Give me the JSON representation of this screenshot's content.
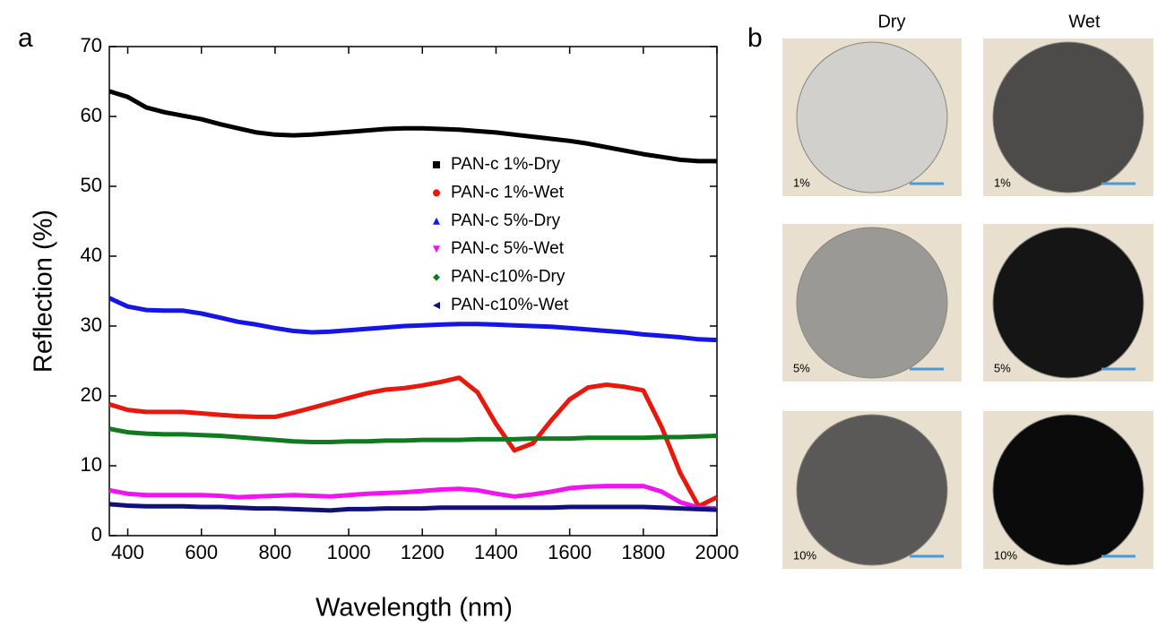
{
  "panel_labels": [
    "a",
    "b"
  ],
  "chart_data": {
    "type": "line",
    "xlabel": "Wavelength (nm)",
    "ylabel": "Reflection (%)",
    "x": [
      350,
      400,
      450,
      500,
      550,
      600,
      650,
      700,
      750,
      800,
      850,
      900,
      950,
      1000,
      1050,
      1100,
      1150,
      1200,
      1250,
      1300,
      1350,
      1400,
      1450,
      1500,
      1550,
      1600,
      1650,
      1700,
      1750,
      1800,
      1850,
      1900,
      1950,
      2000
    ],
    "series": [
      {
        "name": "PAN-c 1%-Dry",
        "color": "#000000",
        "marker": "square",
        "values": [
          63.6,
          62.8,
          61.3,
          60.6,
          60.1,
          59.6,
          58.9,
          58.3,
          57.7,
          57.4,
          57.3,
          57.4,
          57.6,
          57.8,
          58.0,
          58.2,
          58.3,
          58.3,
          58.2,
          58.1,
          57.9,
          57.7,
          57.4,
          57.1,
          56.8,
          56.5,
          56.1,
          55.6,
          55.1,
          54.6,
          54.2,
          53.8,
          53.6,
          53.6
        ]
      },
      {
        "name": "PAN-c 1%-Wet",
        "color": "#e8180c",
        "marker": "circle",
        "values": [
          18.8,
          18.0,
          17.7,
          17.7,
          17.7,
          17.5,
          17.3,
          17.1,
          17.0,
          17.0,
          17.6,
          18.3,
          19.0,
          19.7,
          20.4,
          20.9,
          21.1,
          21.5,
          22.0,
          22.6,
          20.5,
          16.0,
          12.2,
          13.2,
          16.5,
          19.5,
          21.2,
          21.6,
          21.3,
          20.8,
          15.5,
          9.0,
          4.2,
          5.5
        ]
      },
      {
        "name": "PAN-c 5%-Dry",
        "color": "#1515e8",
        "marker": "triangle-up",
        "values": [
          34.0,
          32.8,
          32.3,
          32.2,
          32.2,
          31.8,
          31.2,
          30.6,
          30.2,
          29.7,
          29.3,
          29.1,
          29.2,
          29.4,
          29.6,
          29.8,
          30.0,
          30.1,
          30.2,
          30.3,
          30.3,
          30.2,
          30.1,
          30.0,
          29.9,
          29.7,
          29.5,
          29.3,
          29.1,
          28.8,
          28.6,
          28.4,
          28.1,
          28.0
        ]
      },
      {
        "name": "PAN-c 5%-Wet",
        "color": "#f014f0",
        "marker": "triangle-down",
        "values": [
          6.5,
          6.0,
          5.8,
          5.8,
          5.8,
          5.8,
          5.7,
          5.5,
          5.6,
          5.7,
          5.8,
          5.7,
          5.6,
          5.8,
          6.0,
          6.1,
          6.2,
          6.4,
          6.6,
          6.7,
          6.5,
          6.0,
          5.6,
          5.9,
          6.3,
          6.8,
          7.0,
          7.1,
          7.1,
          7.1,
          6.3,
          4.8,
          4.0,
          3.9
        ]
      },
      {
        "name": "PAN-c10%-Dry",
        "color": "#0f7a1e",
        "marker": "diamond",
        "values": [
          15.3,
          14.8,
          14.6,
          14.5,
          14.5,
          14.4,
          14.3,
          14.1,
          13.9,
          13.7,
          13.5,
          13.4,
          13.4,
          13.5,
          13.5,
          13.6,
          13.6,
          13.7,
          13.7,
          13.7,
          13.8,
          13.8,
          13.8,
          13.9,
          13.9,
          13.9,
          14.0,
          14.0,
          14.0,
          14.0,
          14.1,
          14.1,
          14.2,
          14.3
        ]
      },
      {
        "name": "PAN-c10%-Wet",
        "color": "#10107a",
        "marker": "triangle-left",
        "values": [
          4.5,
          4.3,
          4.2,
          4.2,
          4.2,
          4.1,
          4.1,
          4.0,
          3.9,
          3.9,
          3.8,
          3.7,
          3.6,
          3.8,
          3.8,
          3.9,
          3.9,
          3.9,
          4.0,
          4.0,
          4.0,
          4.0,
          4.0,
          4.0,
          4.0,
          4.1,
          4.1,
          4.1,
          4.1,
          4.1,
          4.0,
          3.9,
          3.8,
          3.7
        ]
      }
    ],
    "xlim": [
      350,
      2000
    ],
    "ylim": [
      0,
      70
    ],
    "xticks": [
      400,
      600,
      800,
      1000,
      1200,
      1400,
      1600,
      1800,
      2000
    ],
    "yticks": [
      0,
      10,
      20,
      30,
      40,
      50,
      60,
      70
    ]
  },
  "photos": {
    "columns": [
      "Dry",
      "Wet"
    ],
    "rows": [
      {
        "label": "1%",
        "shades": [
          "#d2d0cc",
          "#4c4b49"
        ]
      },
      {
        "label": "5%",
        "shades": [
          "#9a9996",
          "#151515"
        ]
      },
      {
        "label": "10%",
        "shades": [
          "#5a5957",
          "#0b0b0b"
        ]
      }
    ]
  }
}
